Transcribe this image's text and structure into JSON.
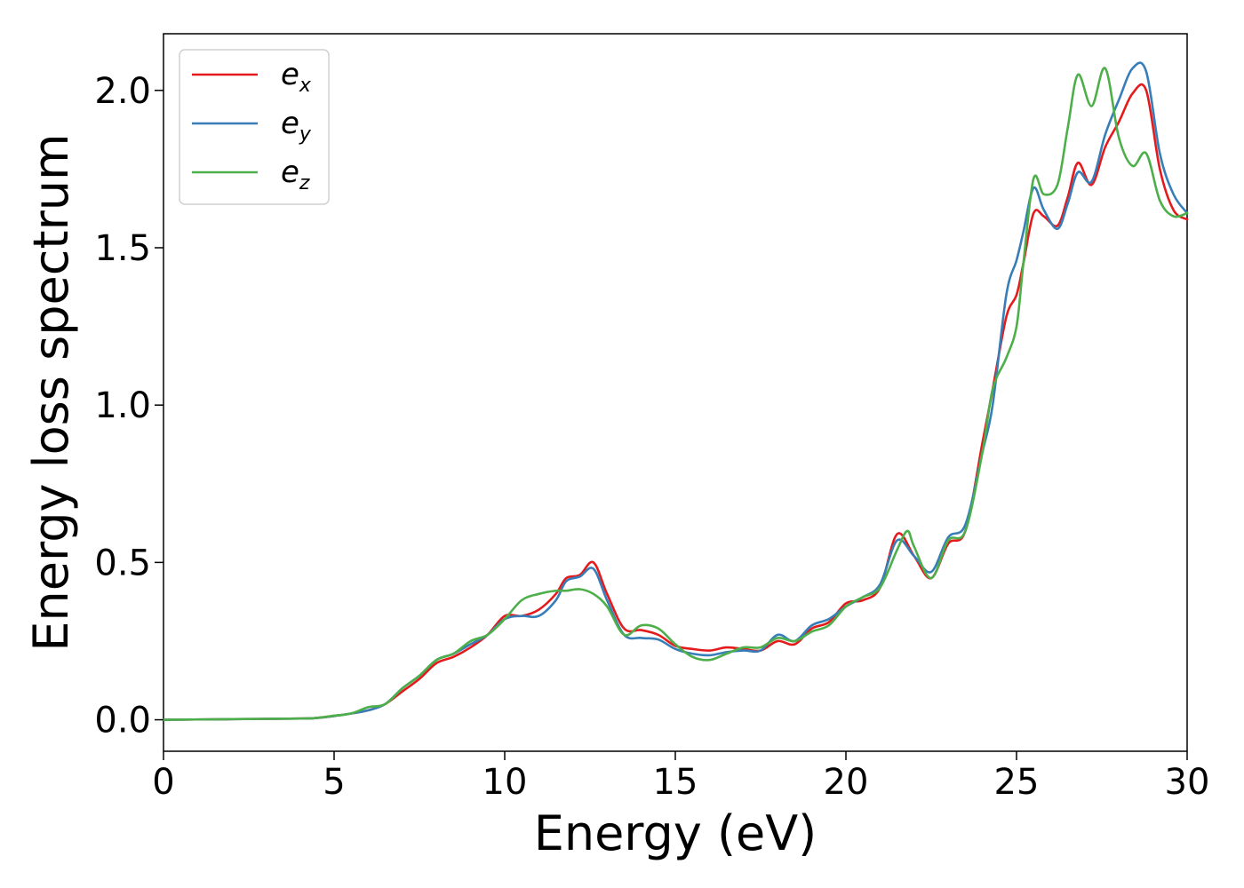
{
  "chart_data": {
    "type": "line",
    "xlabel": "Energy (eV)",
    "ylabel": "Energy loss spectrum",
    "xlim": [
      0,
      30
    ],
    "ylim": [
      -0.1,
      2.18
    ],
    "xticks": [
      0,
      5,
      10,
      15,
      20,
      25,
      30
    ],
    "yticks": [
      0.0,
      0.5,
      1.0,
      1.5,
      2.0
    ],
    "xtick_labels": [
      "0",
      "5",
      "10",
      "15",
      "20",
      "25",
      "30"
    ],
    "ytick_labels": [
      "0.0",
      "0.5",
      "1.0",
      "1.5",
      "2.0"
    ],
    "grid": false,
    "legend_position": "top-left",
    "series": [
      {
        "name": "e",
        "subscript": "x",
        "color": "#e41a1c",
        "x": [
          0,
          2,
          4,
          4.5,
          5,
          5.5,
          6,
          6.5,
          7,
          7.5,
          8,
          8.5,
          9,
          9.5,
          10,
          10.5,
          11,
          11.5,
          11.8,
          12.2,
          12.6,
          13,
          13.5,
          14,
          14.5,
          15,
          15.5,
          16,
          16.5,
          17,
          17.5,
          18,
          18.5,
          19,
          19.5,
          20,
          20.5,
          21,
          21.5,
          22,
          22.5,
          23,
          23.5,
          24,
          24.3,
          24.7,
          25,
          25.2,
          25.5,
          25.8,
          26.2,
          26.5,
          26.8,
          27.2,
          27.6,
          28,
          28.4,
          28.8,
          29.2,
          29.6,
          30
        ],
        "values": [
          0.0,
          0.002,
          0.004,
          0.006,
          0.012,
          0.02,
          0.03,
          0.05,
          0.09,
          0.13,
          0.18,
          0.2,
          0.23,
          0.27,
          0.33,
          0.33,
          0.35,
          0.4,
          0.45,
          0.46,
          0.5,
          0.4,
          0.29,
          0.285,
          0.27,
          0.235,
          0.225,
          0.22,
          0.23,
          0.225,
          0.22,
          0.25,
          0.24,
          0.29,
          0.31,
          0.37,
          0.38,
          0.42,
          0.59,
          0.52,
          0.45,
          0.56,
          0.6,
          0.88,
          1.05,
          1.28,
          1.35,
          1.45,
          1.61,
          1.6,
          1.57,
          1.66,
          1.77,
          1.7,
          1.82,
          1.9,
          1.99,
          2.0,
          1.75,
          1.62,
          1.59
        ]
      },
      {
        "name": "e",
        "subscript": "y",
        "color": "#377eb8",
        "x": [
          0,
          2,
          4,
          4.5,
          5,
          5.5,
          6,
          6.5,
          7,
          7.5,
          8,
          8.5,
          9,
          9.5,
          10,
          10.5,
          11,
          11.5,
          11.8,
          12.2,
          12.6,
          13,
          13.5,
          14,
          14.5,
          15,
          15.5,
          16,
          16.5,
          17,
          17.5,
          18,
          18.5,
          19,
          19.5,
          20,
          20.5,
          21,
          21.5,
          22,
          22.5,
          23,
          23.5,
          24,
          24.3,
          24.7,
          25,
          25.2,
          25.5,
          25.8,
          26.2,
          26.5,
          26.8,
          27.2,
          27.6,
          28,
          28.4,
          28.8,
          29.2,
          29.6,
          30
        ],
        "values": [
          0.0,
          0.002,
          0.004,
          0.006,
          0.012,
          0.02,
          0.03,
          0.05,
          0.1,
          0.14,
          0.19,
          0.21,
          0.24,
          0.27,
          0.32,
          0.33,
          0.33,
          0.38,
          0.44,
          0.455,
          0.48,
          0.38,
          0.27,
          0.26,
          0.255,
          0.225,
          0.21,
          0.205,
          0.215,
          0.22,
          0.22,
          0.27,
          0.25,
          0.3,
          0.32,
          0.36,
          0.39,
          0.43,
          0.57,
          0.52,
          0.47,
          0.58,
          0.62,
          0.85,
          1.0,
          1.35,
          1.46,
          1.55,
          1.69,
          1.62,
          1.56,
          1.64,
          1.74,
          1.71,
          1.86,
          1.97,
          2.07,
          2.06,
          1.8,
          1.67,
          1.61
        ]
      },
      {
        "name": "e",
        "subscript": "z",
        "color": "#4daf4a",
        "x": [
          0,
          2,
          4,
          4.5,
          5,
          5.5,
          6,
          6.5,
          7,
          7.5,
          8,
          8.5,
          9,
          9.5,
          10,
          10.5,
          11,
          11.5,
          11.8,
          12.2,
          12.6,
          13,
          13.5,
          14,
          14.5,
          15,
          15.5,
          16,
          16.5,
          17,
          17.5,
          18,
          18.5,
          19,
          19.5,
          20,
          20.5,
          21,
          21.5,
          21.8,
          22,
          22.5,
          23,
          23.5,
          24,
          24.3,
          24.7,
          25,
          25.2,
          25.5,
          25.8,
          26.2,
          26.5,
          26.8,
          27.2,
          27.6,
          28,
          28.4,
          28.8,
          29.2,
          29.6,
          30
        ],
        "values": [
          0.0,
          0.002,
          0.004,
          0.006,
          0.013,
          0.02,
          0.04,
          0.05,
          0.1,
          0.14,
          0.19,
          0.21,
          0.25,
          0.27,
          0.32,
          0.38,
          0.4,
          0.41,
          0.41,
          0.415,
          0.4,
          0.36,
          0.27,
          0.3,
          0.29,
          0.24,
          0.2,
          0.19,
          0.21,
          0.23,
          0.23,
          0.26,
          0.25,
          0.28,
          0.3,
          0.36,
          0.39,
          0.42,
          0.54,
          0.6,
          0.55,
          0.45,
          0.57,
          0.6,
          0.85,
          1.05,
          1.15,
          1.25,
          1.45,
          1.72,
          1.67,
          1.7,
          1.88,
          2.05,
          1.95,
          2.07,
          1.85,
          1.76,
          1.8,
          1.65,
          1.6,
          1.61
        ]
      }
    ]
  }
}
